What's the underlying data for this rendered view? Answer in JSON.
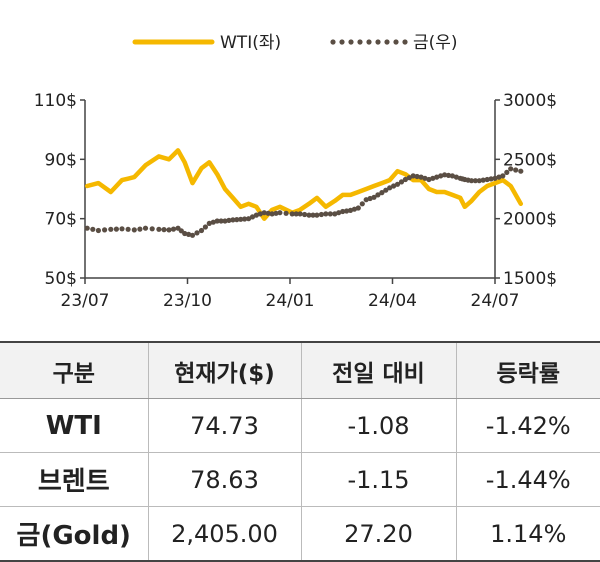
{
  "chart_data": {
    "type": "line",
    "legend_position": "top",
    "x_ticks": [
      "23/07",
      "23/10",
      "24/01",
      "24/04",
      "24/07"
    ],
    "y_left": {
      "ticks": [
        "50$",
        "70$",
        "90$",
        "110$"
      ],
      "ylim": [
        50,
        110
      ]
    },
    "y_right": {
      "ticks": [
        "1500$",
        "2000$",
        "2500$",
        "3000$"
      ],
      "ylim": [
        1500,
        3000
      ]
    },
    "series": [
      {
        "name": "WTI(좌)",
        "axis": "left",
        "style": "solid",
        "color": "#f5b800",
        "x": [
          "2023-07-03",
          "2023-07-13",
          "2023-07-24",
          "2023-08-03",
          "2023-08-14",
          "2023-08-24",
          "2023-09-05",
          "2023-09-14",
          "2023-09-22",
          "2023-09-28",
          "2023-10-05",
          "2023-10-13",
          "2023-10-20",
          "2023-10-27",
          "2023-11-03",
          "2023-11-10",
          "2023-11-17",
          "2023-11-24",
          "2023-12-01",
          "2023-12-08",
          "2023-12-15",
          "2023-12-22",
          "2024-01-02",
          "2024-01-09",
          "2024-01-17",
          "2024-01-24",
          "2024-02-01",
          "2024-02-09",
          "2024-02-16",
          "2024-02-23",
          "2024-03-01",
          "2024-03-08",
          "2024-03-15",
          "2024-03-22",
          "2024-03-29",
          "2024-04-05",
          "2024-04-12",
          "2024-04-19",
          "2024-04-26",
          "2024-05-03",
          "2024-05-10",
          "2024-05-17",
          "2024-05-24",
          "2024-05-31",
          "2024-06-04",
          "2024-06-10",
          "2024-06-17",
          "2024-06-24",
          "2024-07-01",
          "2024-07-08",
          "2024-07-15",
          "2024-07-24"
        ],
        "values": [
          81,
          82,
          79,
          83,
          84,
          88,
          91,
          90,
          93,
          89,
          82,
          87,
          89,
          85,
          80,
          77,
          74,
          75,
          74,
          70,
          73,
          74,
          72,
          73,
          75,
          77,
          74,
          76,
          78,
          78,
          79,
          80,
          81,
          82,
          83,
          86,
          85,
          83,
          83,
          80,
          79,
          79,
          78,
          77,
          74,
          76,
          79,
          81,
          82,
          83,
          81,
          75
        ]
      },
      {
        "name": "금(우)",
        "axis": "right",
        "style": "dotted",
        "color": "#5a4e44",
        "x": [
          "2023-07-03",
          "2023-07-13",
          "2023-07-24",
          "2023-08-03",
          "2023-08-14",
          "2023-08-24",
          "2023-09-05",
          "2023-09-14",
          "2023-09-22",
          "2023-09-28",
          "2023-10-05",
          "2023-10-13",
          "2023-10-20",
          "2023-10-27",
          "2023-11-03",
          "2023-11-10",
          "2023-11-17",
          "2023-11-24",
          "2023-12-01",
          "2023-12-08",
          "2023-12-15",
          "2023-12-22",
          "2024-01-02",
          "2024-01-09",
          "2024-01-17",
          "2024-01-24",
          "2024-02-01",
          "2024-02-09",
          "2024-02-16",
          "2024-02-23",
          "2024-03-01",
          "2024-03-08",
          "2024-03-15",
          "2024-03-22",
          "2024-03-29",
          "2024-04-05",
          "2024-04-12",
          "2024-04-19",
          "2024-04-26",
          "2024-05-03",
          "2024-05-10",
          "2024-05-17",
          "2024-05-24",
          "2024-05-31",
          "2024-06-04",
          "2024-06-10",
          "2024-06-17",
          "2024-06-24",
          "2024-07-01",
          "2024-07-08",
          "2024-07-15",
          "2024-07-24"
        ],
        "values": [
          1920,
          1900,
          1910,
          1915,
          1905,
          1920,
          1910,
          1905,
          1920,
          1875,
          1860,
          1900,
          1960,
          1980,
          1980,
          1990,
          1995,
          2000,
          2030,
          2050,
          2040,
          2050,
          2040,
          2040,
          2030,
          2030,
          2040,
          2040,
          2060,
          2070,
          2090,
          2160,
          2180,
          2220,
          2260,
          2290,
          2330,
          2360,
          2350,
          2330,
          2350,
          2370,
          2360,
          2340,
          2330,
          2320,
          2320,
          2330,
          2340,
          2360,
          2420,
          2400
        ]
      }
    ]
  },
  "table": {
    "headers": [
      "구분",
      "현재가($)",
      "전일 대비",
      "등락률"
    ],
    "rows": [
      {
        "name": "WTI",
        "price": "74.73",
        "change": "-1.08",
        "rate": "-1.42%"
      },
      {
        "name": "브렌트",
        "price": "78.63",
        "change": "-1.15",
        "rate": "-1.44%"
      },
      {
        "name": "금(Gold)",
        "price": "2,405.00",
        "change": "27.20",
        "rate": "1.14%"
      }
    ]
  }
}
